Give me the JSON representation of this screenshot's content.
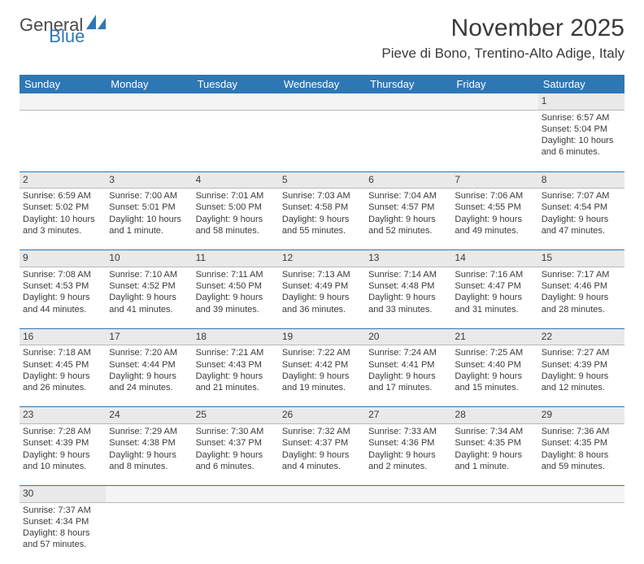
{
  "logo": {
    "general": "General",
    "blue": "Blue"
  },
  "title": "November 2025",
  "location": "Pieve di Bono, Trentino-Alto Adige, Italy",
  "headers": [
    "Sunday",
    "Monday",
    "Tuesday",
    "Wednesday",
    "Thursday",
    "Friday",
    "Saturday"
  ],
  "colors": {
    "header_bg": "#2e77b5",
    "header_fg": "#ffffff",
    "daynum_bg": "#e9e9e9",
    "rule": "#2e77b5"
  },
  "weeks": [
    [
      null,
      null,
      null,
      null,
      null,
      null,
      {
        "n": "1",
        "sr": "Sunrise: 6:57 AM",
        "ss": "Sunset: 5:04 PM",
        "d1": "Daylight: 10 hours",
        "d2": "and 6 minutes."
      }
    ],
    [
      {
        "n": "2",
        "sr": "Sunrise: 6:59 AM",
        "ss": "Sunset: 5:02 PM",
        "d1": "Daylight: 10 hours",
        "d2": "and 3 minutes."
      },
      {
        "n": "3",
        "sr": "Sunrise: 7:00 AM",
        "ss": "Sunset: 5:01 PM",
        "d1": "Daylight: 10 hours",
        "d2": "and 1 minute."
      },
      {
        "n": "4",
        "sr": "Sunrise: 7:01 AM",
        "ss": "Sunset: 5:00 PM",
        "d1": "Daylight: 9 hours",
        "d2": "and 58 minutes."
      },
      {
        "n": "5",
        "sr": "Sunrise: 7:03 AM",
        "ss": "Sunset: 4:58 PM",
        "d1": "Daylight: 9 hours",
        "d2": "and 55 minutes."
      },
      {
        "n": "6",
        "sr": "Sunrise: 7:04 AM",
        "ss": "Sunset: 4:57 PM",
        "d1": "Daylight: 9 hours",
        "d2": "and 52 minutes."
      },
      {
        "n": "7",
        "sr": "Sunrise: 7:06 AM",
        "ss": "Sunset: 4:55 PM",
        "d1": "Daylight: 9 hours",
        "d2": "and 49 minutes."
      },
      {
        "n": "8",
        "sr": "Sunrise: 7:07 AM",
        "ss": "Sunset: 4:54 PM",
        "d1": "Daylight: 9 hours",
        "d2": "and 47 minutes."
      }
    ],
    [
      {
        "n": "9",
        "sr": "Sunrise: 7:08 AM",
        "ss": "Sunset: 4:53 PM",
        "d1": "Daylight: 9 hours",
        "d2": "and 44 minutes."
      },
      {
        "n": "10",
        "sr": "Sunrise: 7:10 AM",
        "ss": "Sunset: 4:52 PM",
        "d1": "Daylight: 9 hours",
        "d2": "and 41 minutes."
      },
      {
        "n": "11",
        "sr": "Sunrise: 7:11 AM",
        "ss": "Sunset: 4:50 PM",
        "d1": "Daylight: 9 hours",
        "d2": "and 39 minutes."
      },
      {
        "n": "12",
        "sr": "Sunrise: 7:13 AM",
        "ss": "Sunset: 4:49 PM",
        "d1": "Daylight: 9 hours",
        "d2": "and 36 minutes."
      },
      {
        "n": "13",
        "sr": "Sunrise: 7:14 AM",
        "ss": "Sunset: 4:48 PM",
        "d1": "Daylight: 9 hours",
        "d2": "and 33 minutes."
      },
      {
        "n": "14",
        "sr": "Sunrise: 7:16 AM",
        "ss": "Sunset: 4:47 PM",
        "d1": "Daylight: 9 hours",
        "d2": "and 31 minutes."
      },
      {
        "n": "15",
        "sr": "Sunrise: 7:17 AM",
        "ss": "Sunset: 4:46 PM",
        "d1": "Daylight: 9 hours",
        "d2": "and 28 minutes."
      }
    ],
    [
      {
        "n": "16",
        "sr": "Sunrise: 7:18 AM",
        "ss": "Sunset: 4:45 PM",
        "d1": "Daylight: 9 hours",
        "d2": "and 26 minutes."
      },
      {
        "n": "17",
        "sr": "Sunrise: 7:20 AM",
        "ss": "Sunset: 4:44 PM",
        "d1": "Daylight: 9 hours",
        "d2": "and 24 minutes."
      },
      {
        "n": "18",
        "sr": "Sunrise: 7:21 AM",
        "ss": "Sunset: 4:43 PM",
        "d1": "Daylight: 9 hours",
        "d2": "and 21 minutes."
      },
      {
        "n": "19",
        "sr": "Sunrise: 7:22 AM",
        "ss": "Sunset: 4:42 PM",
        "d1": "Daylight: 9 hours",
        "d2": "and 19 minutes."
      },
      {
        "n": "20",
        "sr": "Sunrise: 7:24 AM",
        "ss": "Sunset: 4:41 PM",
        "d1": "Daylight: 9 hours",
        "d2": "and 17 minutes."
      },
      {
        "n": "21",
        "sr": "Sunrise: 7:25 AM",
        "ss": "Sunset: 4:40 PM",
        "d1": "Daylight: 9 hours",
        "d2": "and 15 minutes."
      },
      {
        "n": "22",
        "sr": "Sunrise: 7:27 AM",
        "ss": "Sunset: 4:39 PM",
        "d1": "Daylight: 9 hours",
        "d2": "and 12 minutes."
      }
    ],
    [
      {
        "n": "23",
        "sr": "Sunrise: 7:28 AM",
        "ss": "Sunset: 4:39 PM",
        "d1": "Daylight: 9 hours",
        "d2": "and 10 minutes."
      },
      {
        "n": "24",
        "sr": "Sunrise: 7:29 AM",
        "ss": "Sunset: 4:38 PM",
        "d1": "Daylight: 9 hours",
        "d2": "and 8 minutes."
      },
      {
        "n": "25",
        "sr": "Sunrise: 7:30 AM",
        "ss": "Sunset: 4:37 PM",
        "d1": "Daylight: 9 hours",
        "d2": "and 6 minutes."
      },
      {
        "n": "26",
        "sr": "Sunrise: 7:32 AM",
        "ss": "Sunset: 4:37 PM",
        "d1": "Daylight: 9 hours",
        "d2": "and 4 minutes."
      },
      {
        "n": "27",
        "sr": "Sunrise: 7:33 AM",
        "ss": "Sunset: 4:36 PM",
        "d1": "Daylight: 9 hours",
        "d2": "and 2 minutes."
      },
      {
        "n": "28",
        "sr": "Sunrise: 7:34 AM",
        "ss": "Sunset: 4:35 PM",
        "d1": "Daylight: 9 hours",
        "d2": "and 1 minute."
      },
      {
        "n": "29",
        "sr": "Sunrise: 7:36 AM",
        "ss": "Sunset: 4:35 PM",
        "d1": "Daylight: 8 hours",
        "d2": "and 59 minutes."
      }
    ],
    [
      {
        "n": "30",
        "sr": "Sunrise: 7:37 AM",
        "ss": "Sunset: 4:34 PM",
        "d1": "Daylight: 8 hours",
        "d2": "and 57 minutes."
      },
      null,
      null,
      null,
      null,
      null,
      null
    ]
  ]
}
